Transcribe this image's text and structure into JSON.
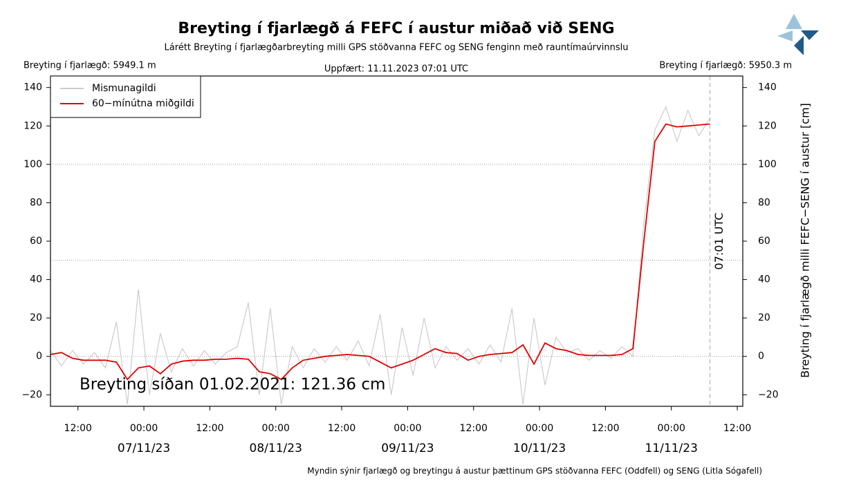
{
  "chart_data": {
    "type": "line",
    "title": "Breyting í fjarlægð á FEFC í austur miðað við SENG",
    "subtitle": "Lárétt Breyting í fjarlægðarbreyting milli GPS stöðvanna FEFC og SENG fenginn með rauntímaúrvinnslu",
    "left_note": "Breyting í fjarlægð: 5949.1 m",
    "right_note": "Breyting í fjarlægð: 5950.3 m",
    "update_note": "Uppfært: 11.11.2023 07:01 UTC",
    "y_label": "Breyting í fjarlægð milli FEFC−SENG í austur [cm]",
    "annotation": "Breyting síðan 01.02.2021: 121.36 cm",
    "vline": {
      "x": "2023-11-11 07:01",
      "label": "07:01 UTC"
    },
    "footer": "Myndin sýnir fjarlægð og breytingu á austur þættinum GPS stöðvanna FEFC (Oddfell) og SENG (Litla Sógafell)",
    "legend": "upper left",
    "grid_lines": [
      0,
      50,
      100
    ],
    "x": [
      "2023-11-06 07:00",
      "2023-11-06 09:00",
      "2023-11-06 11:00",
      "2023-11-06 13:00",
      "2023-11-06 15:00",
      "2023-11-06 17:00",
      "2023-11-06 19:00",
      "2023-11-06 21:00",
      "2023-11-06 23:00",
      "2023-11-07 01:00",
      "2023-11-07 03:00",
      "2023-11-07 05:00",
      "2023-11-07 07:00",
      "2023-11-07 09:00",
      "2023-11-07 11:00",
      "2023-11-07 13:00",
      "2023-11-07 15:00",
      "2023-11-07 17:00",
      "2023-11-07 19:00",
      "2023-11-07 21:00",
      "2023-11-07 23:00",
      "2023-11-08 01:00",
      "2023-11-08 03:00",
      "2023-11-08 05:00",
      "2023-11-08 07:00",
      "2023-11-08 09:00",
      "2023-11-08 11:00",
      "2023-11-08 13:00",
      "2023-11-08 15:00",
      "2023-11-08 17:00",
      "2023-11-08 19:00",
      "2023-11-08 21:00",
      "2023-11-08 23:00",
      "2023-11-09 01:00",
      "2023-11-09 03:00",
      "2023-11-09 05:00",
      "2023-11-09 07:00",
      "2023-11-09 09:00",
      "2023-11-09 11:00",
      "2023-11-09 13:00",
      "2023-11-09 15:00",
      "2023-11-09 17:00",
      "2023-11-09 19:00",
      "2023-11-09 21:00",
      "2023-11-09 23:00",
      "2023-11-10 01:00",
      "2023-11-10 03:00",
      "2023-11-10 05:00",
      "2023-11-10 07:00",
      "2023-11-10 09:00",
      "2023-11-10 11:00",
      "2023-11-10 13:00",
      "2023-11-10 15:00",
      "2023-11-10 17:00",
      "2023-11-10 19:00",
      "2023-11-10 21:00",
      "2023-11-10 23:00",
      "2023-11-11 01:00",
      "2023-11-11 03:00",
      "2023-11-11 05:00",
      "2023-11-11 07:00"
    ],
    "series": [
      {
        "name": "Mismunagildi",
        "color": "#cccccc",
        "values": [
          3,
          -5,
          3,
          -4,
          2,
          -6,
          18,
          -25,
          35,
          -20,
          12,
          -8,
          4,
          -5,
          3,
          -4,
          2,
          5,
          28,
          -20,
          25,
          -25,
          5,
          -6,
          4,
          -3,
          5,
          -2,
          8,
          -5,
          22,
          -20,
          15,
          -10,
          20,
          -6,
          5,
          -2,
          4,
          -4,
          6,
          -3,
          25,
          -25,
          20,
          -15,
          10,
          2,
          4,
          -2,
          3,
          -1,
          5,
          0,
          70,
          118,
          130,
          112,
          128,
          115,
          124
        ]
      },
      {
        "name": "60−mínútna miðgildi",
        "color": "#e00000",
        "values": [
          1,
          2,
          -1,
          -2,
          -2,
          -2,
          -3,
          -12,
          -6,
          -5,
          -9,
          -4,
          -2.5,
          -2,
          -2,
          -1.5,
          -1.5,
          -1,
          -1.5,
          -8,
          -9,
          -12,
          -6,
          -2,
          -1,
          0,
          0.5,
          1,
          0.5,
          0,
          -3,
          -6,
          -4,
          -2,
          1,
          4,
          2,
          1.5,
          -2,
          0,
          1,
          1.5,
          2,
          6,
          -4,
          7,
          4,
          3,
          1,
          0.5,
          0.5,
          0.5,
          1,
          4,
          60,
          112,
          121,
          119.5,
          120,
          120.5,
          121
        ]
      }
    ],
    "xlim": [
      "2023-11-06 07:00",
      "2023-11-11 13:00"
    ],
    "xticks": [
      {
        "value": "2023-11-06 12:00",
        "label": "12:00"
      },
      {
        "value": "2023-11-07 00:00",
        "label": "00:00"
      },
      {
        "value": "2023-11-07 12:00",
        "label": "12:00"
      },
      {
        "value": "2023-11-08 00:00",
        "label": "00:00"
      },
      {
        "value": "2023-11-08 12:00",
        "label": "12:00"
      },
      {
        "value": "2023-11-09 00:00",
        "label": "00:00"
      },
      {
        "value": "2023-11-09 12:00",
        "label": "12:00"
      },
      {
        "value": "2023-11-10 00:00",
        "label": "00:00"
      },
      {
        "value": "2023-11-10 12:00",
        "label": "12:00"
      },
      {
        "value": "2023-11-11 00:00",
        "label": "00:00"
      },
      {
        "value": "2023-11-11 12:00",
        "label": "12:00"
      }
    ],
    "date_labels": [
      {
        "value": "2023-11-07 00:00",
        "label": "07/11/23"
      },
      {
        "value": "2023-11-08 00:00",
        "label": "08/11/23"
      },
      {
        "value": "2023-11-09 00:00",
        "label": "09/11/23"
      },
      {
        "value": "2023-11-10 00:00",
        "label": "10/11/23"
      },
      {
        "value": "2023-11-11 00:00",
        "label": "11/11/23"
      }
    ],
    "ylim": [
      -26,
      146
    ],
    "yticks": [
      {
        "value": -20,
        "label": "−20"
      },
      0,
      20,
      40,
      60,
      80,
      100,
      120,
      140
    ]
  }
}
